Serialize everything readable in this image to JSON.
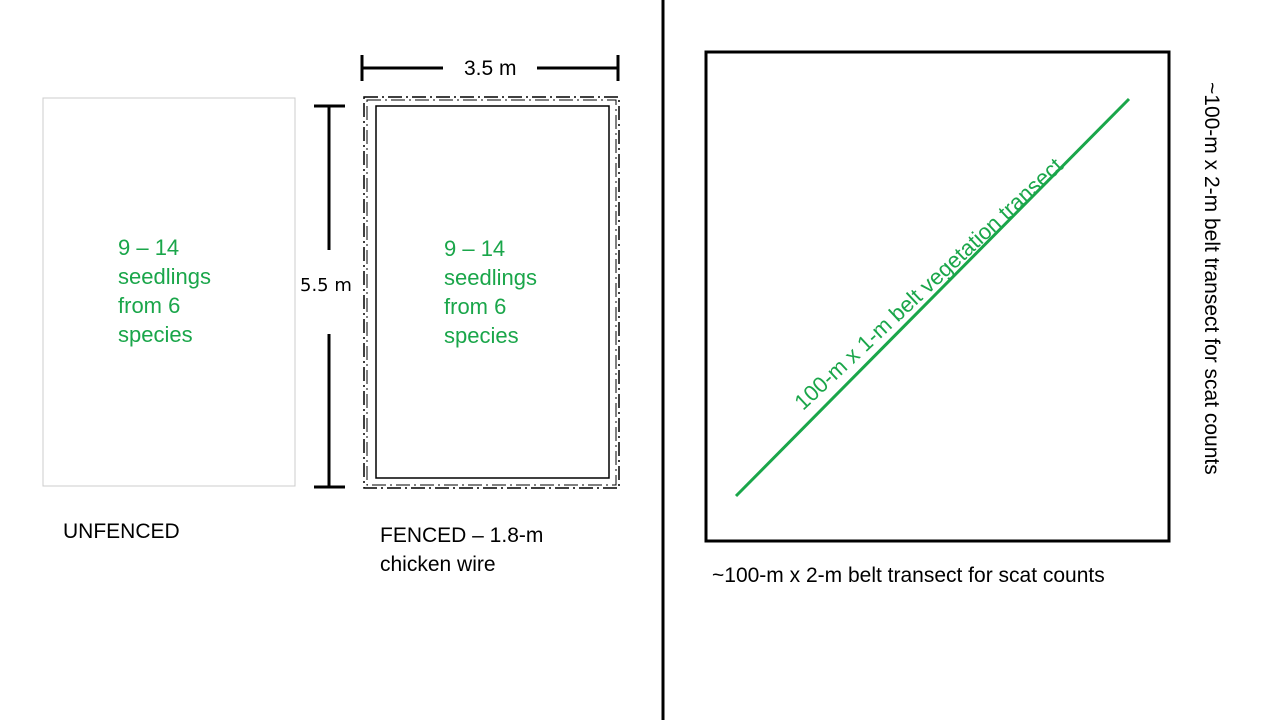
{
  "left_panel": {
    "unfenced_plot": {
      "seedlings_text": [
        "9 – 14",
        "seedlings",
        "from 6",
        "species"
      ],
      "caption": "UNFENCED"
    },
    "fenced_plot": {
      "seedlings_text": [
        "9 – 14",
        "seedlings",
        "from 6",
        "species"
      ],
      "caption_lines": [
        "FENCED – 1.8-m",
        "chicken wire"
      ]
    },
    "dimensions": {
      "width": "3.5 m",
      "height": "5.5 m"
    }
  },
  "right_panel": {
    "vegetation_transect_label": "100-m x 1-m belt vegetation transect",
    "scat_transect_bottom_label": "~100-m x 2-m belt transect for scat counts",
    "scat_transect_side_label": "~100-m x 2-m belt transect for scat counts"
  },
  "colors": {
    "accent_green": "#1aa64a",
    "outline": "#000000",
    "unfenced_border": "#cccccc"
  }
}
